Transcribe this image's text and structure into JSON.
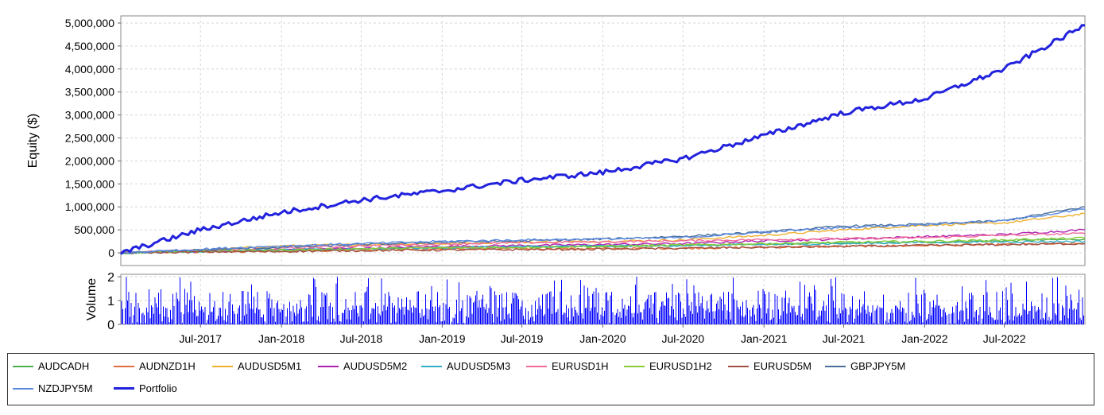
{
  "chart_data": {
    "type": "line",
    "equity_panel": {
      "ylabel": "Equity ($)",
      "ylim": [
        0,
        5100000
      ],
      "yticks": [
        0,
        500000,
        1000000,
        1500000,
        2000000,
        2500000,
        3000000,
        3500000,
        4000000,
        4500000,
        5000000
      ],
      "ytick_labels": [
        "0",
        "500,000",
        "1,000,000",
        "1,500,000",
        "2,000,000",
        "2,500,000",
        "3,000,000",
        "3,500,000",
        "4,000,000",
        "4,500,000",
        "5,000,000"
      ],
      "grid": true
    },
    "volume_panel": {
      "ylabel": "Volume",
      "ylim": [
        0,
        2.1
      ],
      "yticks": [
        0,
        1,
        2
      ],
      "ytick_labels": [
        "0",
        "1",
        "2"
      ],
      "color": "#0000ff"
    },
    "x_axis": {
      "type": "date",
      "xlim": [
        "2017-01-01",
        "2022-12-31"
      ],
      "ticks": [
        "2017-07-01",
        "2018-01-01",
        "2018-07-01",
        "2019-01-01",
        "2019-07-01",
        "2020-01-01",
        "2020-07-01",
        "2021-01-01",
        "2021-07-01",
        "2022-01-01",
        "2022-07-01"
      ],
      "tick_labels": [
        "Jul-2017",
        "Jan-2018",
        "Jul-2018",
        "Jan-2019",
        "Jul-2019",
        "Jan-2020",
        "Jul-2020",
        "Jan-2021",
        "Jul-2021",
        "Jan-2022",
        "Jul-2022"
      ]
    },
    "x": [
      "2017-01-01",
      "2017-07-01",
      "2018-01-01",
      "2018-07-01",
      "2019-01-01",
      "2019-07-01",
      "2020-01-01",
      "2020-07-01",
      "2021-01-01",
      "2021-07-01",
      "2022-01-01",
      "2022-07-01",
      "2022-12-31"
    ],
    "series": [
      {
        "name": "AUDCADH",
        "color": "#4caf50",
        "values": [
          0,
          30000,
          60000,
          85000,
          110000,
          130000,
          140000,
          160000,
          190000,
          210000,
          230000,
          260000,
          300000
        ]
      },
      {
        "name": "AUDNZD1H",
        "color": "#e06c3c",
        "values": [
          0,
          20000,
          40000,
          60000,
          80000,
          90000,
          90000,
          100000,
          120000,
          140000,
          160000,
          180000,
          200000
        ]
      },
      {
        "name": "AUDUSD5M1",
        "color": "#f0b030",
        "values": [
          0,
          60000,
          150000,
          180000,
          200000,
          230000,
          250000,
          280000,
          380000,
          500000,
          600000,
          650000,
          850000
        ]
      },
      {
        "name": "AUDUSD5M2",
        "color": "#b020b0",
        "values": [
          0,
          30000,
          70000,
          100000,
          140000,
          160000,
          180000,
          200000,
          260000,
          300000,
          350000,
          400000,
          500000
        ]
      },
      {
        "name": "AUDUSD5M3",
        "color": "#30b0c8",
        "values": [
          0,
          30000,
          60000,
          90000,
          110000,
          130000,
          150000,
          160000,
          180000,
          200000,
          230000,
          240000,
          250000
        ]
      },
      {
        "name": "EURUSD1H",
        "color": "#f06a9a",
        "values": [
          0,
          50000,
          100000,
          150000,
          190000,
          220000,
          240000,
          260000,
          290000,
          310000,
          330000,
          380000,
          420000
        ]
      },
      {
        "name": "EURUSD1H2",
        "color": "#8acb3a",
        "values": [
          0,
          40000,
          60000,
          90000,
          110000,
          120000,
          140000,
          170000,
          200000,
          230000,
          250000,
          280000,
          320000
        ]
      },
      {
        "name": "EURUSD5M",
        "color": "#a05040",
        "values": [
          0,
          20000,
          30000,
          50000,
          60000,
          70000,
          80000,
          100000,
          120000,
          140000,
          160000,
          180000,
          200000
        ]
      },
      {
        "name": "GBPJPY5M",
        "color": "#4a6f9a",
        "values": [
          0,
          60000,
          120000,
          180000,
          230000,
          260000,
          300000,
          360000,
          450000,
          580000,
          620000,
          700000,
          1000000
        ]
      },
      {
        "name": "NZDJPY5M",
        "color": "#5a8ae0",
        "values": [
          0,
          80000,
          150000,
          200000,
          250000,
          280000,
          300000,
          330000,
          450000,
          550000,
          620000,
          700000,
          950000
        ]
      },
      {
        "name": "Portfolio",
        "color": "#2222dd",
        "values": [
          0,
          500000,
          880000,
          1150000,
          1350000,
          1580000,
          1750000,
          2050000,
          2550000,
          3050000,
          3350000,
          4000000,
          4950000
        ]
      }
    ]
  }
}
